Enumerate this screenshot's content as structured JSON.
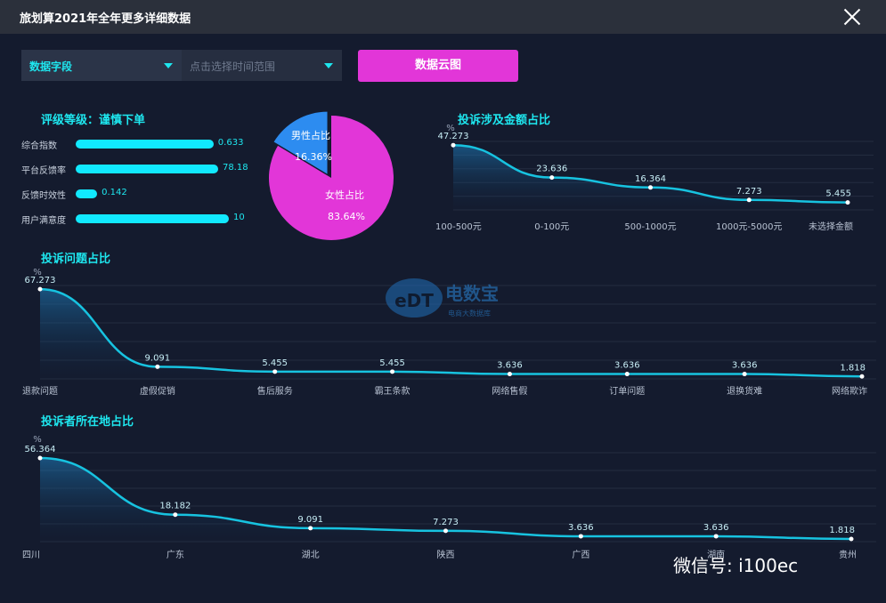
{
  "window": {
    "title": "旅划算2021年全年更多详细数据"
  },
  "controls": {
    "field_select": "数据字段",
    "time_select_placeholder": "点击选择时间范围",
    "cloud_button": "数据云图"
  },
  "rating": {
    "title": "评级等级：谨慎下单",
    "items": [
      {
        "label": "综合指数",
        "value": "0.633",
        "fill": 0.9
      },
      {
        "label": "平台反馈率",
        "value": "78.18",
        "fill": 0.93
      },
      {
        "label": "反馈时效性",
        "value": "0.142",
        "fill": 0.14
      },
      {
        "label": "用户满意度",
        "value": "10",
        "fill": 1.0
      }
    ]
  },
  "chart_data": [
    {
      "type": "pie",
      "slices": [
        {
          "label": "男性占比",
          "value": 16.36,
          "value_label": "16.36%",
          "color": "#2d8cf0"
        },
        {
          "label": "女性占比",
          "value": 83.64,
          "value_label": "83.64%",
          "color": "#e236d8"
        }
      ]
    },
    {
      "type": "area",
      "title": "投诉涉及金额占比",
      "unit": "%",
      "categories": [
        "100-500元",
        "0-100元",
        "500-1000元",
        "1000元-5000元",
        "未选择金额"
      ],
      "values": [
        47.273,
        23.636,
        16.364,
        7.273,
        5.455
      ],
      "value_labels": [
        "47.273",
        "23.636",
        "16.364",
        "7.273",
        "5.455"
      ],
      "ylim": [
        0,
        50
      ]
    },
    {
      "type": "area",
      "title": "投诉问题占比",
      "unit": "%",
      "categories": [
        "退款问题",
        "虚假促销",
        "售后服务",
        "霸王条款",
        "网络售假",
        "订单问题",
        "退换货难",
        "网络欺诈"
      ],
      "values": [
        67.273,
        9.091,
        5.455,
        5.455,
        3.636,
        3.636,
        3.636,
        1.818
      ],
      "value_labels": [
        "67.273",
        "9.091",
        "5.455",
        "5.455",
        "3.636",
        "3.636",
        "3.636",
        "1.818"
      ],
      "ylim": [
        0,
        70
      ]
    },
    {
      "type": "area",
      "title": "投诉者所在地占比",
      "unit": "%",
      "categories": [
        "四川",
        "广东",
        "湖北",
        "陕西",
        "广西",
        "湖南",
        "贵州"
      ],
      "values": [
        56.364,
        18.182,
        9.091,
        7.273,
        3.636,
        3.636,
        1.818
      ],
      "value_labels": [
        "56.364",
        "18.182",
        "9.091",
        "7.273",
        "3.636",
        "3.636",
        "1.818"
      ],
      "ylim": [
        0,
        60
      ]
    }
  ],
  "watermark": {
    "logo_text": "eDT 电数宝",
    "logo_sub": "电商大数据库",
    "wechat": "微信号: i100ec"
  },
  "colors": {
    "accent": "#1ee7ef",
    "button": "#e236d8",
    "line": "#17c3e0"
  }
}
